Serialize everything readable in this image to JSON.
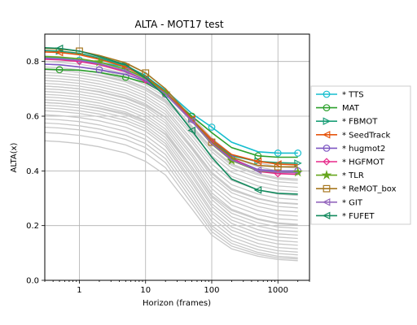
{
  "chart_data": {
    "type": "line",
    "title": "ALTA - MOT17 test",
    "xlabel": "Horizon (frames)",
    "ylabel": "ALTA(x)",
    "xscale": "log",
    "xlim": [
      0.3,
      3000
    ],
    "ylim": [
      0.0,
      0.9
    ],
    "x_ticks": [
      1,
      10,
      100,
      1000
    ],
    "x_tick_labels": [
      "1",
      "10",
      "100",
      "1000"
    ],
    "y_ticks": [
      0.0,
      0.2,
      0.4,
      0.6,
      0.8
    ],
    "y_tick_labels": [
      "0.0",
      "0.2",
      "0.4",
      "0.6",
      "0.8"
    ],
    "grid": true,
    "legend_position": "right",
    "x": [
      0.3,
      0.5,
      1,
      2,
      5,
      10,
      20,
      50,
      100,
      200,
      500,
      1000,
      2000
    ],
    "background_color": "#c8c8c8",
    "background_series": [
      [
        0.84,
        0.837,
        0.83,
        0.815,
        0.79,
        0.76,
        0.7,
        0.6,
        0.52,
        0.46,
        0.43,
        0.415,
        0.41
      ],
      [
        0.82,
        0.817,
        0.81,
        0.795,
        0.77,
        0.74,
        0.69,
        0.59,
        0.51,
        0.45,
        0.415,
        0.4,
        0.395
      ],
      [
        0.8,
        0.797,
        0.79,
        0.778,
        0.755,
        0.725,
        0.68,
        0.58,
        0.5,
        0.44,
        0.405,
        0.39,
        0.385
      ],
      [
        0.79,
        0.787,
        0.78,
        0.768,
        0.745,
        0.715,
        0.67,
        0.565,
        0.485,
        0.425,
        0.39,
        0.375,
        0.37
      ],
      [
        0.78,
        0.777,
        0.77,
        0.758,
        0.735,
        0.705,
        0.66,
        0.555,
        0.47,
        0.41,
        0.375,
        0.36,
        0.355
      ],
      [
        0.77,
        0.767,
        0.76,
        0.748,
        0.725,
        0.695,
        0.65,
        0.54,
        0.455,
        0.395,
        0.36,
        0.345,
        0.34
      ],
      [
        0.76,
        0.757,
        0.75,
        0.738,
        0.715,
        0.685,
        0.64,
        0.53,
        0.44,
        0.38,
        0.345,
        0.33,
        0.325
      ],
      [
        0.75,
        0.747,
        0.74,
        0.728,
        0.705,
        0.675,
        0.628,
        0.515,
        0.425,
        0.365,
        0.33,
        0.315,
        0.31
      ],
      [
        0.74,
        0.737,
        0.73,
        0.718,
        0.695,
        0.665,
        0.618,
        0.505,
        0.41,
        0.35,
        0.315,
        0.3,
        0.295
      ],
      [
        0.73,
        0.727,
        0.72,
        0.708,
        0.685,
        0.655,
        0.607,
        0.49,
        0.395,
        0.335,
        0.3,
        0.285,
        0.28
      ],
      [
        0.72,
        0.717,
        0.71,
        0.698,
        0.675,
        0.645,
        0.597,
        0.48,
        0.38,
        0.32,
        0.285,
        0.27,
        0.265
      ],
      [
        0.71,
        0.707,
        0.7,
        0.688,
        0.665,
        0.635,
        0.585,
        0.465,
        0.365,
        0.305,
        0.27,
        0.255,
        0.25
      ],
      [
        0.7,
        0.697,
        0.69,
        0.678,
        0.655,
        0.625,
        0.575,
        0.455,
        0.35,
        0.29,
        0.255,
        0.24,
        0.235
      ],
      [
        0.69,
        0.687,
        0.68,
        0.668,
        0.645,
        0.615,
        0.565,
        0.44,
        0.335,
        0.275,
        0.24,
        0.225,
        0.22
      ],
      [
        0.68,
        0.677,
        0.67,
        0.658,
        0.635,
        0.605,
        0.553,
        0.43,
        0.32,
        0.26,
        0.225,
        0.21,
        0.205
      ],
      [
        0.67,
        0.667,
        0.66,
        0.648,
        0.625,
        0.595,
        0.543,
        0.415,
        0.305,
        0.245,
        0.21,
        0.195,
        0.19
      ],
      [
        0.66,
        0.657,
        0.65,
        0.638,
        0.615,
        0.585,
        0.532,
        0.405,
        0.295,
        0.232,
        0.198,
        0.183,
        0.178
      ],
      [
        0.65,
        0.647,
        0.64,
        0.628,
        0.605,
        0.575,
        0.522,
        0.39,
        0.28,
        0.22,
        0.185,
        0.17,
        0.165
      ],
      [
        0.64,
        0.637,
        0.63,
        0.618,
        0.595,
        0.565,
        0.51,
        0.38,
        0.27,
        0.208,
        0.172,
        0.158,
        0.153
      ],
      [
        0.63,
        0.627,
        0.62,
        0.608,
        0.585,
        0.555,
        0.5,
        0.365,
        0.255,
        0.195,
        0.16,
        0.145,
        0.14
      ],
      [
        0.62,
        0.617,
        0.61,
        0.598,
        0.575,
        0.545,
        0.49,
        0.355,
        0.245,
        0.183,
        0.148,
        0.133,
        0.128
      ],
      [
        0.605,
        0.602,
        0.595,
        0.583,
        0.56,
        0.53,
        0.475,
        0.34,
        0.23,
        0.17,
        0.135,
        0.12,
        0.115
      ],
      [
        0.59,
        0.587,
        0.58,
        0.568,
        0.545,
        0.515,
        0.46,
        0.325,
        0.215,
        0.158,
        0.123,
        0.108,
        0.103
      ],
      [
        0.575,
        0.572,
        0.565,
        0.553,
        0.53,
        0.5,
        0.445,
        0.31,
        0.2,
        0.145,
        0.112,
        0.098,
        0.093
      ],
      [
        0.56,
        0.557,
        0.55,
        0.538,
        0.515,
        0.485,
        0.43,
        0.295,
        0.19,
        0.135,
        0.102,
        0.088,
        0.083
      ],
      [
        0.54,
        0.537,
        0.53,
        0.518,
        0.495,
        0.465,
        0.412,
        0.28,
        0.178,
        0.125,
        0.095,
        0.082,
        0.078
      ],
      [
        0.51,
        0.507,
        0.5,
        0.488,
        0.465,
        0.435,
        0.385,
        0.262,
        0.165,
        0.115,
        0.088,
        0.076,
        0.072
      ],
      [
        0.77,
        0.767,
        0.76,
        0.75,
        0.73,
        0.702,
        0.655,
        0.56,
        0.48,
        0.42,
        0.385,
        0.37,
        0.365
      ],
      [
        0.71,
        0.707,
        0.7,
        0.69,
        0.668,
        0.64,
        0.595,
        0.485,
        0.39,
        0.33,
        0.298,
        0.283,
        0.278
      ],
      [
        0.65,
        0.647,
        0.64,
        0.63,
        0.61,
        0.582,
        0.535,
        0.415,
        0.31,
        0.255,
        0.222,
        0.207,
        0.202
      ]
    ],
    "series": [
      {
        "name": "* TTS",
        "color": "#17becf",
        "marker": "circle",
        "values": [
          0.815,
          0.812,
          0.805,
          0.797,
          0.78,
          0.745,
          0.695,
          0.61,
          0.56,
          0.505,
          0.47,
          0.465,
          0.465
        ],
        "marker_x": [
          1,
          10,
          100,
          1000,
          2000
        ]
      },
      {
        "name": "MAT",
        "color": "#2ca02c",
        "marker": "circle",
        "values": [
          0.772,
          0.77,
          0.768,
          0.76,
          0.742,
          0.722,
          0.682,
          0.6,
          0.54,
          0.485,
          0.455,
          0.45,
          0.45
        ],
        "marker_x": [
          0.5,
          5,
          50,
          500
        ]
      },
      {
        "name": "* FBMOT",
        "color": "#1b9e77",
        "marker": "triangle-right",
        "values": [
          0.84,
          0.838,
          0.83,
          0.812,
          0.785,
          0.748,
          0.69,
          0.59,
          0.51,
          0.455,
          0.435,
          0.43,
          0.428
        ],
        "marker_x": [
          0.5,
          5,
          50,
          500,
          2000
        ]
      },
      {
        "name": "* SeedTrack",
        "color": "#e6550d",
        "marker": "triangle-left",
        "values": [
          0.835,
          0.833,
          0.825,
          0.808,
          0.78,
          0.742,
          0.688,
          0.59,
          0.515,
          0.46,
          0.435,
          0.425,
          0.422
        ],
        "marker_x": [
          0.5,
          5,
          50,
          500,
          1000
        ]
      },
      {
        "name": "* hugmot2",
        "color": "#7e57c2",
        "marker": "circle",
        "values": [
          0.79,
          0.788,
          0.78,
          0.77,
          0.752,
          0.728,
          0.68,
          0.585,
          0.505,
          0.445,
          0.405,
          0.4,
          0.4
        ],
        "marker_x": [
          2,
          20,
          200,
          2000
        ]
      },
      {
        "name": "* HGFMOT",
        "color": "#e7298a",
        "marker": "diamond",
        "values": [
          0.808,
          0.806,
          0.8,
          0.788,
          0.762,
          0.732,
          0.683,
          0.588,
          0.508,
          0.448,
          0.398,
          0.39,
          0.388
        ],
        "marker_x": [
          1,
          10,
          100,
          1000
        ]
      },
      {
        "name": "* TLR",
        "color": "#66a61e",
        "marker": "star",
        "values": [
          0.818,
          0.816,
          0.81,
          0.798,
          0.772,
          0.738,
          0.684,
          0.582,
          0.498,
          0.438,
          0.4,
          0.395,
          0.395
        ],
        "marker_x": [
          2,
          20,
          200,
          2000
        ]
      },
      {
        "name": "* ReMOT_box",
        "color": "#a6761d",
        "marker": "square",
        "values": [
          0.848,
          0.846,
          0.838,
          0.822,
          0.795,
          0.758,
          0.7,
          0.592,
          0.505,
          0.45,
          0.42,
          0.415,
          0.415
        ],
        "marker_x": [
          1,
          10,
          100,
          1000
        ]
      },
      {
        "name": "* GIT",
        "color": "#9467bd",
        "marker": "triangle-left",
        "values": [
          0.812,
          0.81,
          0.804,
          0.792,
          0.766,
          0.732,
          0.682,
          0.582,
          0.5,
          0.44,
          0.402,
          0.395,
          0.394
        ],
        "marker_x": [
          5,
          50,
          500
        ]
      },
      {
        "name": "* FUFET",
        "color": "#138a5e",
        "marker": "triangle-left",
        "values": [
          0.85,
          0.848,
          0.838,
          0.818,
          0.788,
          0.74,
          0.672,
          0.548,
          0.45,
          0.37,
          0.33,
          0.318,
          0.315
        ],
        "marker_x": [
          0.5,
          50,
          500
        ]
      }
    ]
  }
}
